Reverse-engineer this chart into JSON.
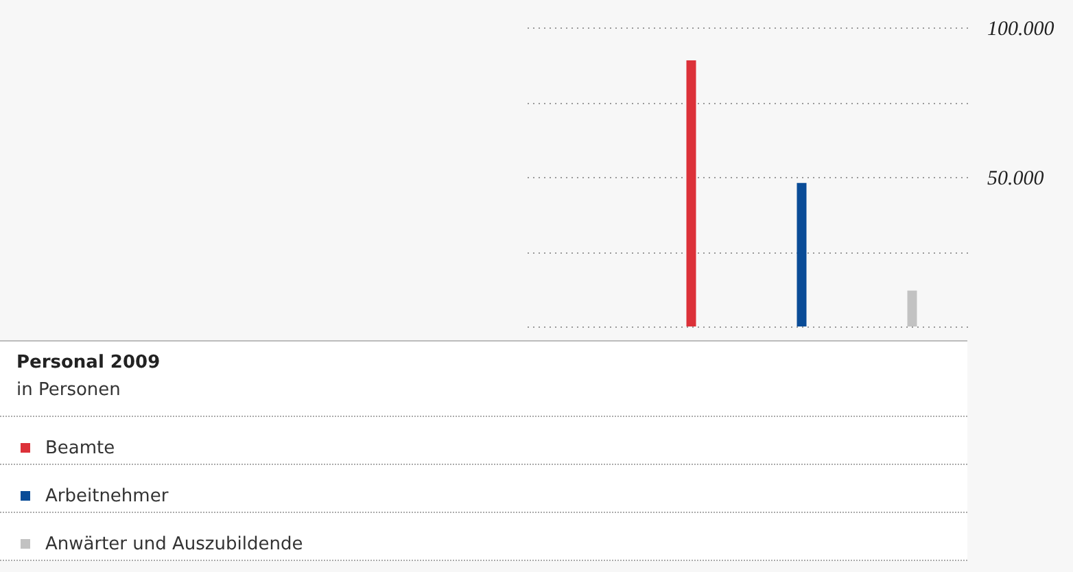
{
  "chart_data": {
    "type": "bar",
    "title": "Personal 2009",
    "subtitle": "in Personen",
    "categories": [
      null,
      null,
      null,
      null
    ],
    "series": [
      {
        "name": "Beamte",
        "color": "#dc3139",
        "values": [
          null,
          89000,
          null,
          null
        ]
      },
      {
        "name": "Arbeitnehmer",
        "color": "#0a4c97",
        "values": [
          null,
          null,
          48000,
          null
        ]
      },
      {
        "name": "Anwärter und Auszubildende",
        "color": "#c2c2c2",
        "values": [
          null,
          null,
          null,
          12000
        ]
      }
    ],
    "ylim": [
      0,
      100000
    ],
    "yticks": [
      {
        "value": 0,
        "label": null
      },
      {
        "value": 25000,
        "label": null
      },
      {
        "value": 50000,
        "label": "50.000"
      },
      {
        "value": 75000,
        "label": null
      },
      {
        "value": 100000,
        "label": "100.000"
      }
    ],
    "grid": "y",
    "legend": "bottom"
  }
}
